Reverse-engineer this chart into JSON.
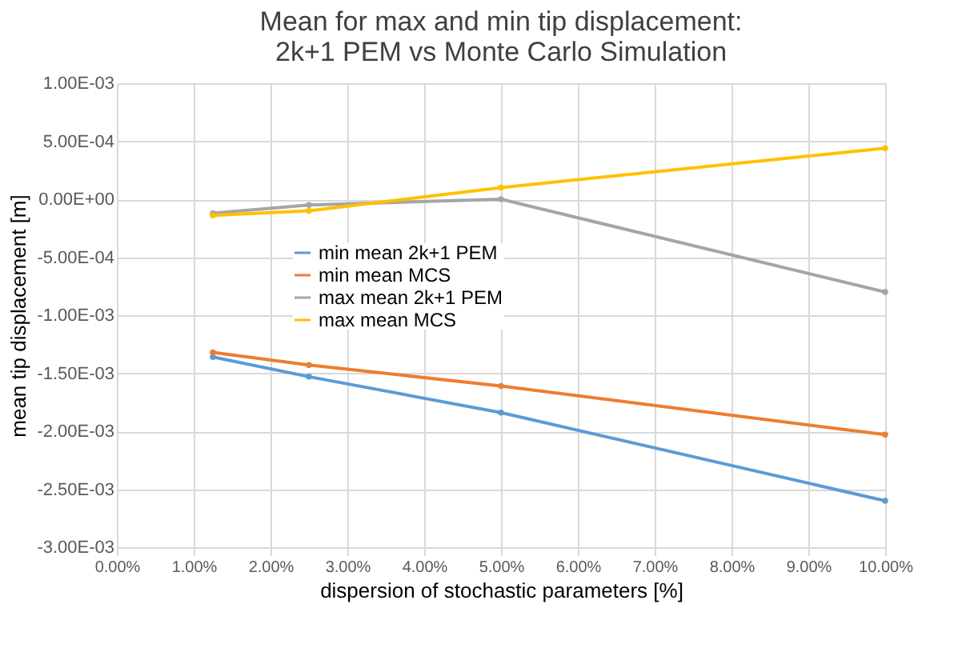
{
  "chart_data": {
    "type": "line",
    "title": [
      "Mean for max and min tip displacement:",
      "2k+1 PEM vs Monte Carlo Simulation"
    ],
    "xlabel": "dispersion of stochastic parameters [%]",
    "ylabel": "mean tip displacement [m]",
    "x": [
      1.25,
      2.5,
      5,
      10
    ],
    "series": [
      {
        "name": "min mean 2k+1 PEM",
        "color": "#5b9bd5",
        "values": [
          -0.00136,
          -0.00153,
          -0.00184,
          -0.0026
        ]
      },
      {
        "name": "min mean MCS",
        "color": "#ed7d31",
        "values": [
          -0.00132,
          -0.00143,
          -0.00161,
          -0.00203
        ]
      },
      {
        "name": "max mean 2k+1 PEM",
        "color": "#a5a5a5",
        "values": [
          -0.00012,
          -5e-05,
          0,
          -0.0008
        ]
      },
      {
        "name": "max mean MCS",
        "color": "#ffc000",
        "values": [
          -0.00014,
          -0.0001,
          0.0001,
          0.00044
        ]
      }
    ],
    "xlim": [
      0,
      10
    ],
    "ylim": [
      -0.003,
      0.001
    ],
    "xticks": [
      {
        "value": 0,
        "label": "0.00%"
      },
      {
        "value": 1,
        "label": "1.00%"
      },
      {
        "value": 2,
        "label": "2.00%"
      },
      {
        "value": 3,
        "label": "3.00%"
      },
      {
        "value": 4,
        "label": "4.00%"
      },
      {
        "value": 5,
        "label": "5.00%"
      },
      {
        "value": 6,
        "label": "6.00%"
      },
      {
        "value": 7,
        "label": "7.00%"
      },
      {
        "value": 8,
        "label": "8.00%"
      },
      {
        "value": 9,
        "label": "9.00%"
      },
      {
        "value": 10,
        "label": "10.00%"
      }
    ],
    "yticks": [
      {
        "value": 0.001,
        "label": "1.00E-03"
      },
      {
        "value": 0.0005,
        "label": "5.00E-04"
      },
      {
        "value": 0,
        "label": "0.00E+00"
      },
      {
        "value": -0.0005,
        "label": "-5.00E-04"
      },
      {
        "value": -0.001,
        "label": "-1.00E-03"
      },
      {
        "value": -0.0015,
        "label": "-1.50E-03"
      },
      {
        "value": -0.002,
        "label": "-2.00E-03"
      },
      {
        "value": -0.0025,
        "label": "-2.50E-03"
      },
      {
        "value": -0.003,
        "label": "-3.00E-03"
      }
    ],
    "grid": true,
    "legend": "center",
    "marker": "circle",
    "line_style": "solid"
  }
}
